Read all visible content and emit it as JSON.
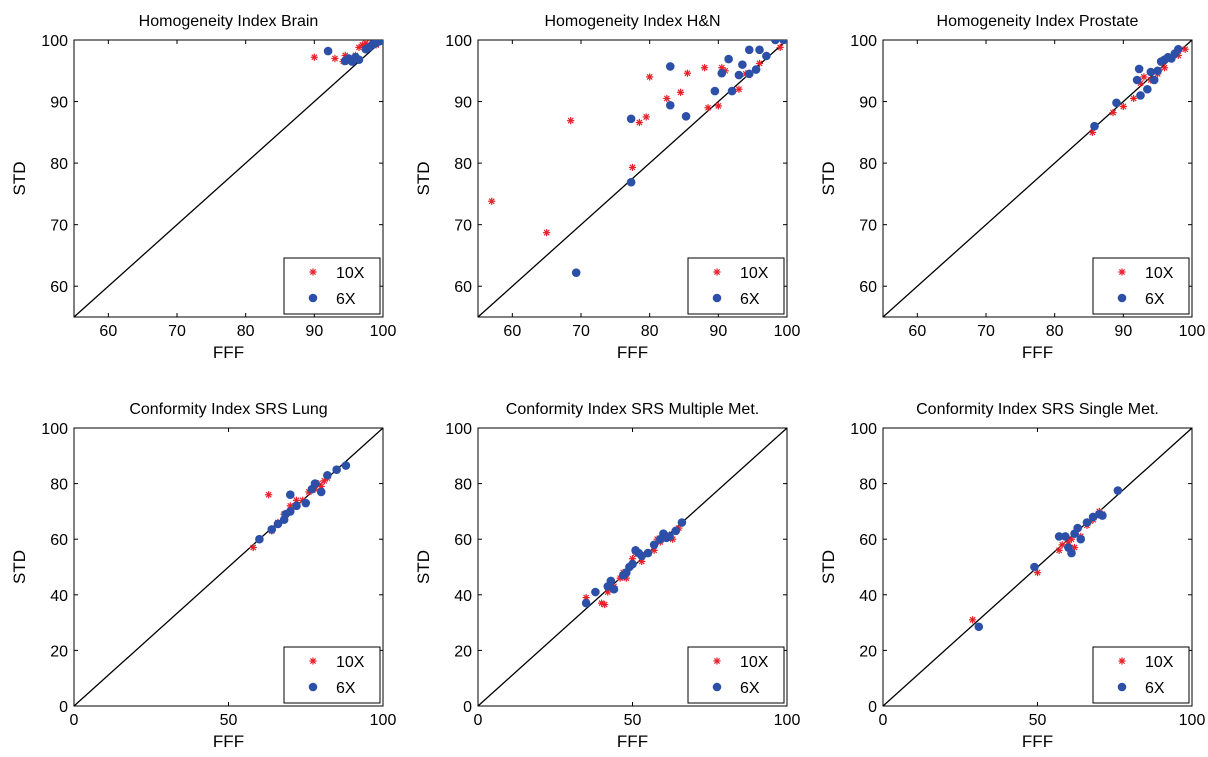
{
  "colors": {
    "10X": "#e8202a",
    "6X": "#2c4fa8",
    "axis": "#000000",
    "identity_line": "#000000"
  },
  "chart_data": [
    {
      "type": "scatter",
      "title": "Homogeneity Index Brain",
      "xlabel": "FFF",
      "ylabel": "STD",
      "xlim": [
        55,
        100
      ],
      "ylim": [
        55,
        100
      ],
      "xticks": [
        60,
        70,
        80,
        90,
        100
      ],
      "yticks": [
        60,
        70,
        80,
        90,
        100
      ],
      "identity_line": true,
      "legend_position": "bottom-right",
      "series": [
        {
          "name": "10X",
          "marker": "asterisk",
          "points": [
            [
              90,
              97.2
            ],
            [
              93,
              97
            ],
            [
              94.2,
              96.5
            ],
            [
              94.5,
              97.5
            ],
            [
              95,
              96.8
            ],
            [
              96,
              97.5
            ],
            [
              96.5,
              98.8
            ],
            [
              97,
              99.2
            ],
            [
              97.5,
              99.5
            ],
            [
              98.5,
              99.5
            ],
            [
              99,
              99.2
            ],
            [
              99.5,
              99.8
            ]
          ]
        },
        {
          "name": "6X",
          "marker": "circle",
          "points": [
            [
              92,
              98.2
            ],
            [
              94.5,
              96.6
            ],
            [
              95,
              97
            ],
            [
              95.5,
              96.5
            ],
            [
              96,
              97.2
            ],
            [
              96.5,
              96.8
            ],
            [
              97.5,
              98.5
            ],
            [
              98,
              98.8
            ],
            [
              98.5,
              99.3
            ],
            [
              99,
              99.5
            ],
            [
              99.5,
              99.8
            ],
            [
              100,
              100
            ]
          ]
        }
      ]
    },
    {
      "type": "scatter",
      "title": "Homogeneity Index H&N",
      "xlabel": "FFF",
      "ylabel": "STD",
      "xlim": [
        55,
        100
      ],
      "ylim": [
        55,
        100
      ],
      "xticks": [
        60,
        70,
        80,
        90,
        100
      ],
      "yticks": [
        60,
        70,
        80,
        90,
        100
      ],
      "identity_line": true,
      "legend_position": "bottom-right",
      "series": [
        {
          "name": "10X",
          "marker": "asterisk",
          "points": [
            [
              57,
              73.8
            ],
            [
              65,
              68.7
            ],
            [
              68.5,
              86.9
            ],
            [
              77.5,
              79.3
            ],
            [
              78.5,
              86.6
            ],
            [
              79.5,
              87.5
            ],
            [
              80,
              94
            ],
            [
              82.5,
              90.5
            ],
            [
              84.5,
              91.5
            ],
            [
              85.5,
              94.6
            ],
            [
              88,
              95.5
            ],
            [
              88.5,
              89
            ],
            [
              90,
              89.3
            ],
            [
              90.5,
              95.5
            ],
            [
              91,
              95
            ],
            [
              93,
              92
            ],
            [
              94,
              94.5
            ],
            [
              96,
              96.2
            ],
            [
              97,
              97.5
            ],
            [
              99,
              98.8
            ]
          ]
        },
        {
          "name": "6X",
          "marker": "circle",
          "points": [
            [
              69.3,
              62.2
            ],
            [
              77.3,
              87.2
            ],
            [
              77.3,
              76.9
            ],
            [
              83,
              95.7
            ],
            [
              83,
              89.4
            ],
            [
              85.3,
              87.6
            ],
            [
              89.5,
              91.7
            ],
            [
              90.5,
              94.6
            ],
            [
              91.5,
              96.9
            ],
            [
              92,
              91.7
            ],
            [
              93,
              94.3
            ],
            [
              93.5,
              96
            ],
            [
              94.5,
              94.5
            ],
            [
              94.5,
              98.4
            ],
            [
              95.5,
              95.2
            ],
            [
              96,
              98.4
            ],
            [
              97,
              97.4
            ],
            [
              98.3,
              100
            ],
            [
              99.5,
              100
            ]
          ]
        }
      ]
    },
    {
      "type": "scatter",
      "title": "Homogeneity Index Prostate",
      "xlabel": "FFF",
      "ylabel": "STD",
      "xlim": [
        55,
        100
      ],
      "ylim": [
        55,
        100
      ],
      "xticks": [
        60,
        70,
        80,
        90,
        100
      ],
      "yticks": [
        60,
        70,
        80,
        90,
        100
      ],
      "identity_line": true,
      "legend_position": "bottom-right",
      "series": [
        {
          "name": "10X",
          "marker": "asterisk",
          "points": [
            [
              85.5,
              85
            ],
            [
              88.5,
              88.2
            ],
            [
              90,
              89.2
            ],
            [
              91.5,
              90.5
            ],
            [
              92.5,
              93
            ],
            [
              93,
              94
            ],
            [
              94,
              93.5
            ],
            [
              95,
              94.5
            ],
            [
              96,
              95.5
            ],
            [
              97,
              97
            ],
            [
              98,
              97.5
            ],
            [
              99,
              98.5
            ]
          ]
        },
        {
          "name": "6X",
          "marker": "circle",
          "points": [
            [
              85.8,
              86
            ],
            [
              89,
              89.8
            ],
            [
              92,
              93.5
            ],
            [
              92.3,
              95.3
            ],
            [
              92.5,
              91
            ],
            [
              93.5,
              92
            ],
            [
              94,
              94.8
            ],
            [
              94.5,
              93.5
            ],
            [
              95,
              95
            ],
            [
              95.5,
              96.5
            ],
            [
              96,
              96.8
            ],
            [
              96.5,
              97.2
            ],
            [
              97,
              97
            ],
            [
              97.5,
              97.8
            ],
            [
              98,
              98.5
            ]
          ]
        }
      ]
    },
    {
      "type": "scatter",
      "title": "Conformity Index SRS Lung",
      "xlabel": "FFF",
      "ylabel": "STD",
      "xlim": [
        0,
        100
      ],
      "ylim": [
        0,
        100
      ],
      "xticks": [
        0,
        50,
        100
      ],
      "yticks": [
        0,
        20,
        40,
        60,
        80,
        100
      ],
      "identity_line": true,
      "legend_position": "bottom-right",
      "series": [
        {
          "name": "10X",
          "marker": "asterisk",
          "points": [
            [
              58,
              57
            ],
            [
              63,
              76
            ],
            [
              64,
              63
            ],
            [
              66,
              66
            ],
            [
              68,
              69
            ],
            [
              70,
              72
            ],
            [
              72,
              74
            ],
            [
              74,
              74
            ],
            [
              76,
              77
            ],
            [
              78,
              78
            ],
            [
              79,
              80
            ],
            [
              80,
              79
            ],
            [
              81,
              81
            ],
            [
              82,
              82
            ]
          ]
        },
        {
          "name": "6X",
          "marker": "circle",
          "points": [
            [
              60,
              60
            ],
            [
              64,
              63.5
            ],
            [
              66,
              65.5
            ],
            [
              68,
              67
            ],
            [
              68.5,
              69
            ],
            [
              70,
              70
            ],
            [
              70,
              76
            ],
            [
              72,
              72
            ],
            [
              75,
              73
            ],
            [
              77,
              78
            ],
            [
              78,
              80
            ],
            [
              80,
              77
            ],
            [
              82,
              83
            ],
            [
              85,
              85
            ],
            [
              88,
              86.5
            ]
          ]
        }
      ]
    },
    {
      "type": "scatter",
      "title": "Conformity Index SRS Multiple Met.",
      "xlabel": "FFF",
      "ylabel": "STD",
      "xlim": [
        0,
        100
      ],
      "ylim": [
        0,
        100
      ],
      "xticks": [
        0,
        50,
        100
      ],
      "yticks": [
        0,
        20,
        40,
        60,
        80,
        100
      ],
      "identity_line": true,
      "legend_position": "bottom-right",
      "series": [
        {
          "name": "10X",
          "marker": "asterisk",
          "points": [
            [
              35,
              39
            ],
            [
              40,
              37
            ],
            [
              41,
              36.5
            ],
            [
              42,
              41
            ],
            [
              44,
              43
            ],
            [
              46,
              46
            ],
            [
              47,
              48
            ],
            [
              48,
              46
            ],
            [
              49,
              50
            ],
            [
              50,
              53
            ],
            [
              51,
              55
            ],
            [
              53,
              52
            ],
            [
              55,
              55
            ],
            [
              57,
              56
            ],
            [
              58,
              60
            ],
            [
              59,
              59
            ],
            [
              60,
              61
            ],
            [
              62,
              61.5
            ],
            [
              63,
              60
            ],
            [
              65,
              64
            ]
          ]
        },
        {
          "name": "6X",
          "marker": "circle",
          "points": [
            [
              35,
              37
            ],
            [
              38,
              41
            ],
            [
              42,
              43
            ],
            [
              43,
              45
            ],
            [
              44,
              42
            ],
            [
              47,
              47
            ],
            [
              48,
              48
            ],
            [
              49,
              50
            ],
            [
              50,
              51
            ],
            [
              51,
              56
            ],
            [
              52,
              55
            ],
            [
              53,
              54
            ],
            [
              55,
              55
            ],
            [
              57,
              58
            ],
            [
              59,
              60
            ],
            [
              60,
              62
            ],
            [
              61,
              60.5
            ],
            [
              62,
              61
            ],
            [
              64,
              63
            ],
            [
              66,
              66
            ]
          ]
        }
      ]
    },
    {
      "type": "scatter",
      "title": "Conformity Index SRS Single Met.",
      "xlabel": "FFF",
      "ylabel": "STD",
      "xlim": [
        0,
        100
      ],
      "ylim": [
        0,
        100
      ],
      "xticks": [
        0,
        50,
        100
      ],
      "yticks": [
        0,
        20,
        40,
        60,
        80,
        100
      ],
      "identity_line": true,
      "legend_position": "bottom-right",
      "series": [
        {
          "name": "10X",
          "marker": "asterisk",
          "points": [
            [
              29,
              31
            ],
            [
              50,
              48
            ],
            [
              57,
              56
            ],
            [
              58,
              58
            ],
            [
              60,
              59
            ],
            [
              61,
              60
            ],
            [
              62,
              57
            ],
            [
              64,
              61
            ],
            [
              66,
              65
            ],
            [
              67,
              66.5
            ],
            [
              68,
              67
            ],
            [
              70,
              70
            ],
            [
              71,
              69
            ]
          ]
        },
        {
          "name": "6X",
          "marker": "circle",
          "points": [
            [
              31,
              28.5
            ],
            [
              49,
              50
            ],
            [
              57,
              61
            ],
            [
              59,
              61
            ],
            [
              60,
              57
            ],
            [
              61,
              55
            ],
            [
              62,
              62
            ],
            [
              63,
              64
            ],
            [
              64,
              60
            ],
            [
              66,
              66
            ],
            [
              68,
              68
            ],
            [
              70,
              69
            ],
            [
              71,
              68.5
            ],
            [
              76,
              77.5
            ]
          ]
        }
      ]
    }
  ]
}
